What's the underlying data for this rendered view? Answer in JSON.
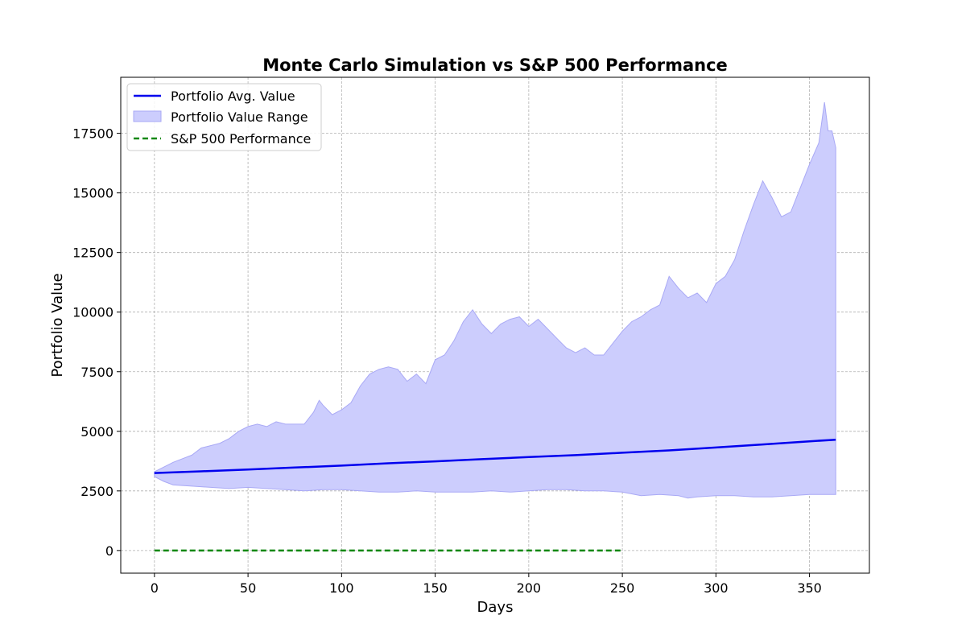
{
  "chart_data": {
    "type": "line",
    "title": "Monte Carlo Simulation vs S&P 500 Performance",
    "xlabel": "Days",
    "ylabel": "Portfolio Value",
    "xlim": [
      -18,
      382
    ],
    "ylim": [
      -950,
      19850
    ],
    "x_ticks": [
      0,
      50,
      100,
      150,
      200,
      250,
      300,
      350
    ],
    "y_ticks": [
      0,
      2500,
      5000,
      7500,
      10000,
      12500,
      15000,
      17500
    ],
    "grid": true,
    "legend_position": "upper-left",
    "colors": {
      "avg": "#0000ee",
      "range_fill": "#cccdfd",
      "range_edge": "#a9a9f5",
      "sp500": "#118811"
    },
    "range_upper": {
      "x": [
        0,
        5,
        10,
        15,
        20,
        25,
        30,
        35,
        40,
        45,
        50,
        55,
        60,
        65,
        70,
        75,
        80,
        85,
        88,
        90,
        95,
        100,
        105,
        110,
        115,
        120,
        125,
        130,
        135,
        140,
        145,
        150,
        155,
        160,
        165,
        170,
        175,
        180,
        185,
        190,
        195,
        200,
        205,
        210,
        215,
        220,
        225,
        230,
        235,
        240,
        245,
        250,
        255,
        260,
        265,
        270,
        275,
        280,
        285,
        290,
        295,
        300,
        305,
        310,
        315,
        320,
        325,
        330,
        335,
        340,
        345,
        350,
        355,
        358,
        360,
        362,
        364
      ],
      "y": [
        3300,
        3500,
        3700,
        3850,
        4000,
        4300,
        4400,
        4500,
        4700,
        5000,
        5200,
        5300,
        5200,
        5400,
        5300,
        5300,
        5300,
        5800,
        6300,
        6100,
        5700,
        5900,
        6200,
        6900,
        7400,
        7600,
        7700,
        7600,
        7100,
        7400,
        7000,
        8000,
        8200,
        8800,
        9600,
        10100,
        9500,
        9100,
        9500,
        9700,
        9800,
        9400,
        9700,
        9300,
        8900,
        8500,
        8300,
        8500,
        8200,
        8200,
        8700,
        9200,
        9600,
        9800,
        10100,
        10300,
        11500,
        11000,
        10600,
        10800,
        10400,
        11200,
        11500,
        12200,
        13400,
        14500,
        15500,
        14800,
        14000,
        14200,
        15200,
        16200,
        17100,
        18800,
        17600,
        17600,
        16900
      ]
    },
    "range_lower": {
      "x": [
        0,
        5,
        10,
        20,
        30,
        40,
        50,
        60,
        70,
        80,
        90,
        100,
        110,
        120,
        130,
        140,
        150,
        160,
        170,
        180,
        190,
        200,
        210,
        220,
        230,
        240,
        250,
        260,
        270,
        280,
        285,
        290,
        300,
        310,
        320,
        330,
        340,
        350,
        360,
        364
      ],
      "y": [
        3100,
        2900,
        2750,
        2700,
        2650,
        2600,
        2650,
        2600,
        2550,
        2500,
        2550,
        2550,
        2500,
        2450,
        2450,
        2500,
        2450,
        2450,
        2450,
        2500,
        2450,
        2500,
        2550,
        2550,
        2500,
        2500,
        2450,
        2300,
        2350,
        2300,
        2200,
        2250,
        2300,
        2300,
        2250,
        2250,
        2300,
        2350,
        2350,
        2350
      ]
    },
    "series": [
      {
        "name": "Portfolio Avg. Value",
        "x": [
          0,
          25,
          50,
          75,
          100,
          125,
          150,
          175,
          200,
          225,
          250,
          275,
          300,
          325,
          350,
          364
        ],
        "y": [
          3250,
          3320,
          3400,
          3480,
          3560,
          3660,
          3740,
          3830,
          3920,
          4000,
          4100,
          4200,
          4320,
          4450,
          4580,
          4650
        ]
      },
      {
        "name": "S&P 500 Performance",
        "x": [
          0,
          249
        ],
        "y": [
          0,
          0
        ]
      }
    ],
    "legend": [
      {
        "label": "Portfolio Avg. Value",
        "kind": "line"
      },
      {
        "label": "Portfolio Value Range",
        "kind": "patch"
      },
      {
        "label": "S&P 500 Performance",
        "kind": "dashed"
      }
    ]
  }
}
